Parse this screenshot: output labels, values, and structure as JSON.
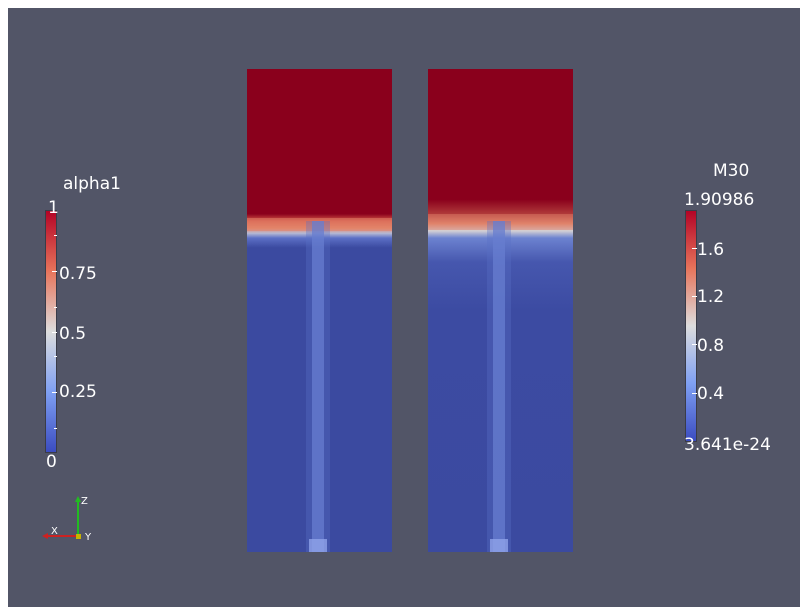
{
  "colormap": {
    "top": "#b40426",
    "upper": "#e7745b",
    "middle": "#dddddd",
    "lower": "#7fa0f3",
    "bottom": "#3b4cc0",
    "background": "#525567",
    "field_red": "#8a001c",
    "field_blue": "#3b4aa0"
  },
  "legend_alpha": {
    "title": "alpha1",
    "max": "1",
    "t075": "0.75",
    "t05": "0.5",
    "t025": "0.25",
    "min": "0"
  },
  "legend_m30": {
    "title": "M30",
    "max": "1.90986",
    "t16": "1.6",
    "t12": "1.2",
    "t08": "0.8",
    "t04": "0.4",
    "min": "3.641e-24"
  },
  "axes": {
    "x": "X",
    "y": "Y",
    "z": "Z",
    "x_color": "#cc2222",
    "y_color": "#c8b400",
    "z_color": "#22bb22"
  },
  "scene": {
    "interface_level": 0.32
  }
}
